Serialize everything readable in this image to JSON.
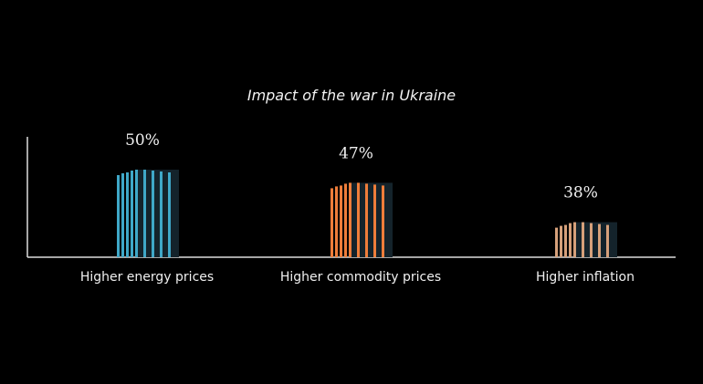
{
  "chart_data": {
    "type": "bar",
    "title": "Impact of the war in Ukraine",
    "categories": [
      "Higher energy prices",
      "Higher commodity prices",
      "Higher inflation"
    ],
    "values": [
      50,
      47,
      38
    ],
    "value_labels": [
      "50%",
      "47%",
      "38%"
    ],
    "colors": [
      "#3fa8c8",
      "#ee7d3a",
      "#d6a07a"
    ],
    "xlabel": "",
    "ylabel": "",
    "ylim": [
      30,
      55
    ],
    "grid": false
  }
}
